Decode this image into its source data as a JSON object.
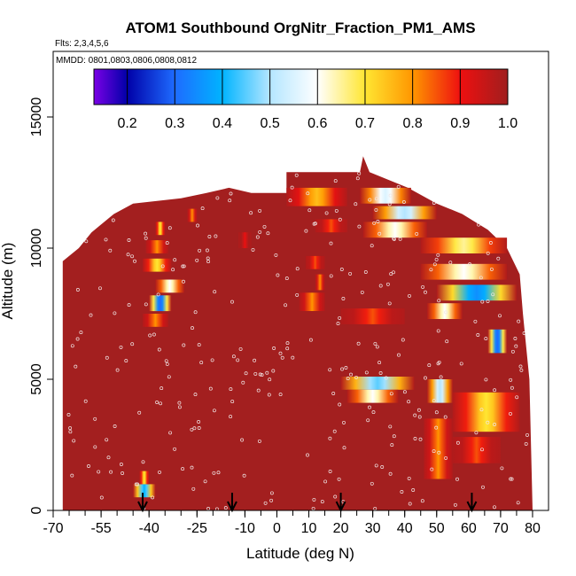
{
  "chart_data": {
    "type": "heatmap",
    "title": "ATOM1 Southbound OrgNitr_Fraction_PM1_AMS",
    "flights_label": "Flts: 2,3,4,5,6",
    "dates_label": "MMDD: 0801,0803,0806,0808,0812",
    "xlabel": "Latitude (deg N)",
    "ylabel": "Altitude (m)",
    "xlim": [
      -70,
      85
    ],
    "ylim": [
      0,
      17500
    ],
    "x_ticks": [
      -70,
      -55,
      -40,
      -25,
      -10,
      0,
      10,
      20,
      30,
      40,
      50,
      60,
      70,
      80
    ],
    "x_tick_labels": [
      "-70",
      "-55",
      "-40",
      "-25",
      "-10",
      "0",
      "10",
      "20",
      "30",
      "40",
      "50",
      "60",
      "70",
      "80"
    ],
    "y_ticks": [
      0,
      5000,
      10000,
      15000
    ],
    "y_tick_labels": [
      "0",
      "5000",
      "10000",
      "15000"
    ],
    "colorbar": {
      "range": [
        0.13,
        1.0
      ],
      "ticks": [
        0.2,
        0.3,
        0.4,
        0.5,
        0.6,
        0.7,
        0.8,
        0.9,
        1.0
      ],
      "tick_labels": [
        "0.2",
        "0.3",
        "0.4",
        "0.5",
        "0.6",
        "0.7",
        "0.8",
        "0.9",
        "1.0"
      ],
      "color_stops": [
        {
          "v": 0.13,
          "c": "#7a00e6"
        },
        {
          "v": 0.2,
          "c": "#0000a8"
        },
        {
          "v": 0.3,
          "c": "#1e6bff"
        },
        {
          "v": 0.4,
          "c": "#00b4ff"
        },
        {
          "v": 0.5,
          "c": "#b4e6ff"
        },
        {
          "v": 0.6,
          "c": "#ffffff"
        },
        {
          "v": 0.7,
          "c": "#ffe632"
        },
        {
          "v": 0.8,
          "c": "#ff9600"
        },
        {
          "v": 0.9,
          "c": "#ee1010"
        },
        {
          "v": 1.0,
          "c": "#a01e1e"
        }
      ]
    },
    "background_value": 1.0,
    "background_color": "#a31f1f",
    "data_envelope_top": [
      {
        "lat": -67,
        "alt": 6000
      },
      {
        "lat": -67,
        "alt": 9500
      },
      {
        "lat": -62,
        "alt": 10000
      },
      {
        "lat": -58,
        "alt": 10600
      },
      {
        "lat": -51,
        "alt": 11300
      },
      {
        "lat": -45,
        "alt": 11700
      },
      {
        "lat": -30,
        "alt": 11900
      },
      {
        "lat": -22,
        "alt": 12100
      },
      {
        "lat": -15,
        "alt": 12300
      },
      {
        "lat": -8,
        "alt": 12100
      },
      {
        "lat": 3,
        "alt": 12100
      },
      {
        "lat": 3,
        "alt": 12900
      },
      {
        "lat": 26,
        "alt": 12900
      },
      {
        "lat": 27,
        "alt": 13500
      },
      {
        "lat": 29,
        "alt": 12900
      },
      {
        "lat": 41,
        "alt": 12300
      },
      {
        "lat": 50,
        "alt": 11700
      },
      {
        "lat": 58,
        "alt": 11300
      },
      {
        "lat": 66,
        "alt": 10700
      },
      {
        "lat": 72,
        "alt": 10000
      },
      {
        "lat": 76,
        "alt": 9000
      },
      {
        "lat": 77,
        "alt": 7500
      },
      {
        "lat": 79,
        "alt": 5000
      },
      {
        "lat": 80,
        "alt": 0
      }
    ],
    "data_envelope_left_lat": -67,
    "low_fraction_patches": [
      {
        "lat_range": [
          -41,
          -34
        ],
        "alt_range": [
          9800,
          10300
        ],
        "min_value": 0.8
      },
      {
        "lat_range": [
          -42,
          -33
        ],
        "alt_range": [
          9100,
          9600
        ],
        "min_value": 0.7
      },
      {
        "lat_range": [
          -38,
          -29
        ],
        "alt_range": [
          8300,
          8800
        ],
        "min_value": 0.6
      },
      {
        "lat_range": [
          -40,
          -33
        ],
        "alt_range": [
          7600,
          8200
        ],
        "min_value": 0.3
      },
      {
        "lat_range": [
          -42,
          -34
        ],
        "alt_range": [
          7000,
          7500
        ],
        "min_value": 0.8
      },
      {
        "lat_range": [
          -38,
          -35
        ],
        "alt_range": [
          10500,
          11000
        ],
        "min_value": 0.7
      },
      {
        "lat_range": [
          -28,
          -25
        ],
        "alt_range": [
          11000,
          11500
        ],
        "min_value": 0.8
      },
      {
        "lat_range": [
          -12,
          -8
        ],
        "alt_range": [
          10000,
          10600
        ],
        "min_value": 0.9
      },
      {
        "lat_range": [
          3,
          22
        ],
        "alt_range": [
          11600,
          12300
        ],
        "min_value": 0.75
      },
      {
        "lat_range": [
          12,
          22
        ],
        "alt_range": [
          10600,
          11100
        ],
        "min_value": 0.85
      },
      {
        "lat_range": [
          9,
          15
        ],
        "alt_range": [
          9200,
          9700
        ],
        "min_value": 0.85
      },
      {
        "lat_range": [
          12,
          15
        ],
        "alt_range": [
          8400,
          9000
        ],
        "min_value": 0.8
      },
      {
        "lat_range": [
          7,
          15
        ],
        "alt_range": [
          7600,
          8300
        ],
        "min_value": 0.8
      },
      {
        "lat_range": [
          26,
          42
        ],
        "alt_range": [
          11700,
          12300
        ],
        "min_value": 0.55
      },
      {
        "lat_range": [
          30,
          50
        ],
        "alt_range": [
          11100,
          11600
        ],
        "min_value": 0.5
      },
      {
        "lat_range": [
          27,
          47
        ],
        "alt_range": [
          10400,
          11000
        ],
        "min_value": 0.6
      },
      {
        "lat_range": [
          45,
          72
        ],
        "alt_range": [
          9800,
          10400
        ],
        "min_value": 0.65
      },
      {
        "lat_range": [
          45,
          72
        ],
        "alt_range": [
          8800,
          9400
        ],
        "min_value": 0.6
      },
      {
        "lat_range": [
          50,
          75
        ],
        "alt_range": [
          8000,
          8600
        ],
        "min_value": 0.35
      },
      {
        "lat_range": [
          47,
          58
        ],
        "alt_range": [
          7300,
          7900
        ],
        "min_value": 0.6
      },
      {
        "lat_range": [
          20,
          40
        ],
        "alt_range": [
          7100,
          7700
        ],
        "min_value": 0.85
      },
      {
        "lat_range": [
          66,
          72
        ],
        "alt_range": [
          6000,
          6900
        ],
        "min_value": 0.3
      },
      {
        "lat_range": [
          20,
          43
        ],
        "alt_range": [
          4600,
          5100
        ],
        "min_value": 0.45
      },
      {
        "lat_range": [
          22,
          38
        ],
        "alt_range": [
          4100,
          4600
        ],
        "min_value": 0.6
      },
      {
        "lat_range": [
          47,
          55
        ],
        "alt_range": [
          4100,
          5000
        ],
        "min_value": 0.5
      },
      {
        "lat_range": [
          55,
          76
        ],
        "alt_range": [
          3000,
          4500
        ],
        "min_value": 0.7
      },
      {
        "lat_range": [
          46,
          55
        ],
        "alt_range": [
          1200,
          3500
        ],
        "min_value": 0.8
      },
      {
        "lat_range": [
          55,
          70
        ],
        "alt_range": [
          1800,
          2800
        ],
        "min_value": 0.85
      },
      {
        "lat_range": [
          -45,
          -38
        ],
        "alt_range": [
          500,
          1000
        ],
        "min_value": 0.4
      },
      {
        "lat_range": [
          -43,
          -40
        ],
        "alt_range": [
          1000,
          1500
        ],
        "min_value": 0.7
      }
    ],
    "arrow_markers_lat": [
      -42,
      -14,
      20,
      61
    ]
  }
}
